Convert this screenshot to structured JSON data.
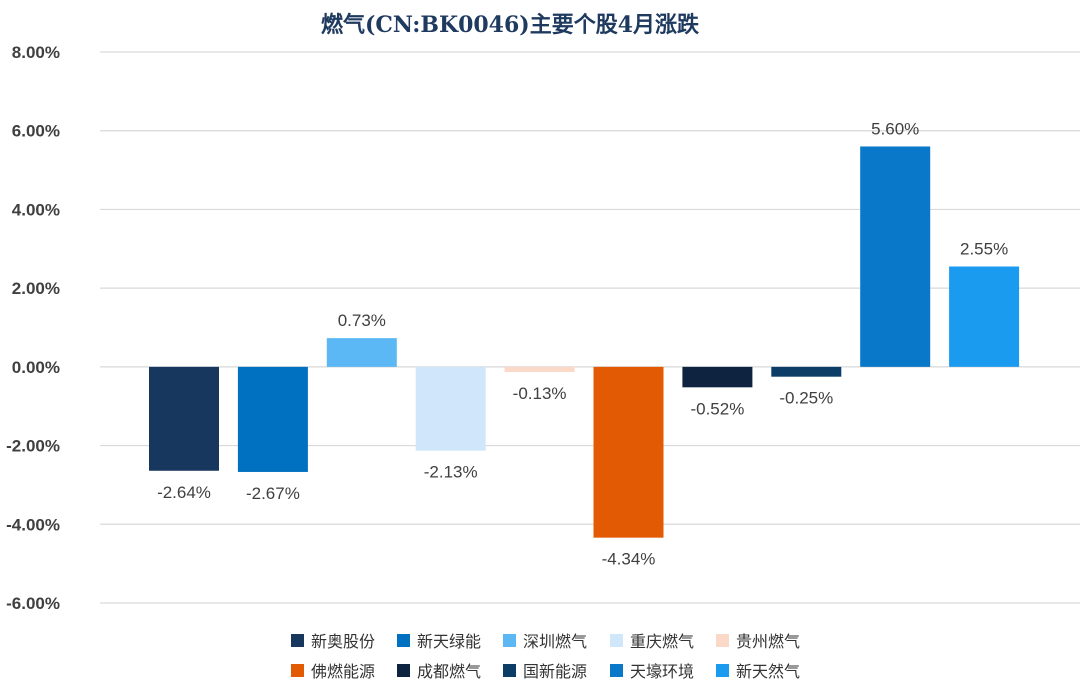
{
  "chart_data": {
    "type": "bar",
    "title": "燃气(CN:BK0046)主要个股4月涨跌",
    "xlabel": "",
    "ylabel": "",
    "ylim": [
      -6,
      8
    ],
    "y_ticks": [
      "8.00%",
      "6.00%",
      "4.00%",
      "2.00%",
      "0.00%",
      "-2.00%",
      "-4.00%",
      "-6.00%"
    ],
    "y_tick_values": [
      8,
      6,
      4,
      2,
      0,
      -2,
      -4,
      -6
    ],
    "grid": true,
    "legend_position": "bottom",
    "categories": [
      "新奥股份",
      "新天绿能",
      "深圳燃气",
      "重庆燃气",
      "贵州燃气",
      "佛燃能源",
      "成都燃气",
      "国新能源",
      "天壕环境",
      "新天然气"
    ],
    "values": [
      -2.64,
      -2.67,
      0.73,
      -2.13,
      -0.13,
      -4.34,
      -0.52,
      -0.25,
      5.6,
      2.55
    ],
    "value_labels": [
      "-2.64%",
      "-2.67%",
      "0.73%",
      "-2.13%",
      "-0.13%",
      "-4.34%",
      "-0.52%",
      "-0.25%",
      "5.60%",
      "2.55%"
    ],
    "colors": [
      "#17375e",
      "#0070c0",
      "#5bb8f5",
      "#cfe6fb",
      "#fbd9c8",
      "#e35a05",
      "#0d2340",
      "#0b3d66",
      "#0a78c8",
      "#1a9bf0"
    ]
  }
}
